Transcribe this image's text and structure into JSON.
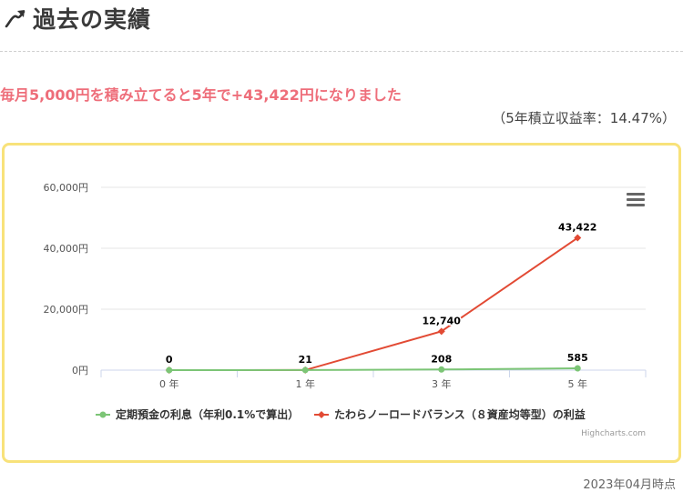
{
  "header": {
    "icon": "trend-up-icon",
    "title": "過去の実績"
  },
  "headline": "毎月5,000円を積み立てると5年で+43,422円になりました",
  "yield_note": "（5年積立収益率：14.47%）",
  "as_of": "2023年04月時点",
  "credit": "Highcharts.com",
  "chart_data": {
    "type": "line",
    "categories": [
      "0 年",
      "1 年",
      "3 年",
      "5 年"
    ],
    "y_ticks": [
      "0円",
      "20,000円",
      "40,000円",
      "60,000円"
    ],
    "ylim": [
      0,
      60000
    ],
    "series": [
      {
        "name": "定期預金の利息（年利0.1%で算出）",
        "color": "#7cc576",
        "values": [
          0,
          21,
          208,
          585
        ]
      },
      {
        "name": "たわらノーロードバランス（８資産均等型）の利益",
        "color": "#e24a34",
        "values": [
          0,
          21,
          12740,
          43422
        ]
      }
    ],
    "data_labels": [
      "0",
      "21",
      "12,740",
      "43,422",
      "208",
      "585"
    ],
    "grid": true,
    "legend": "bottom"
  }
}
